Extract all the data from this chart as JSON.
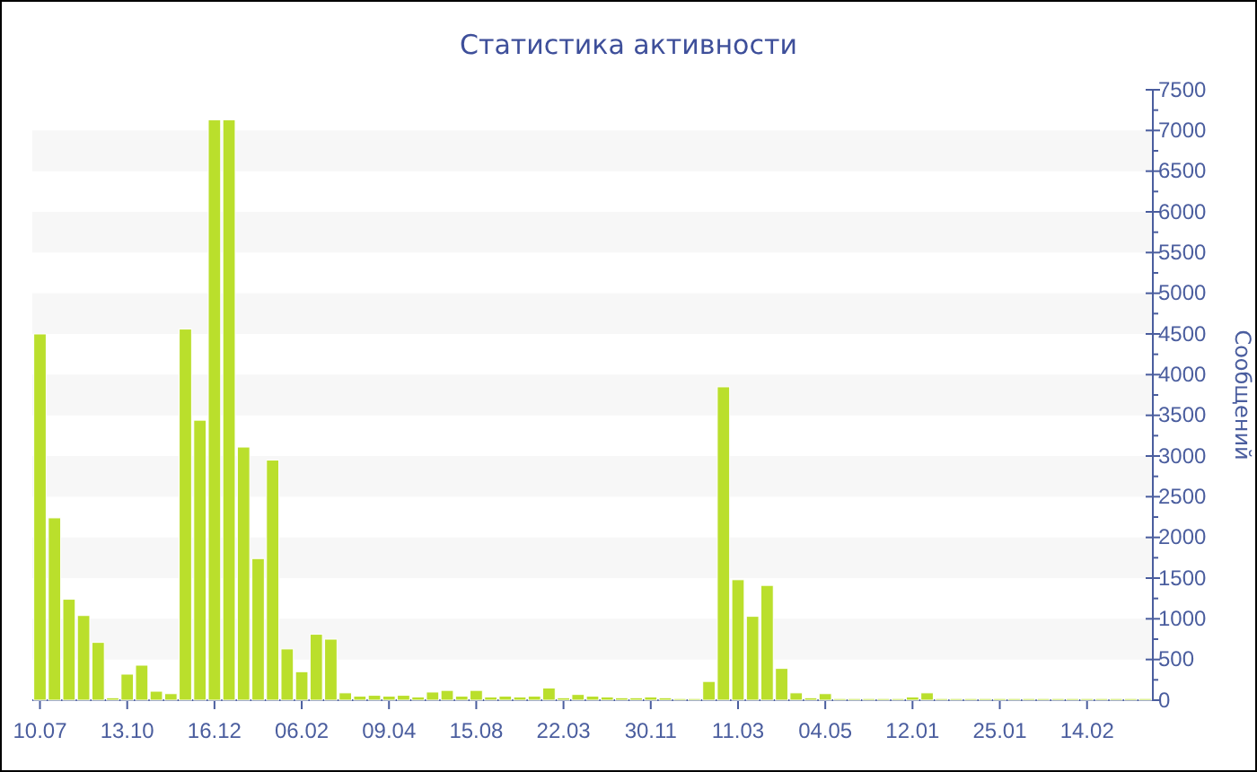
{
  "chart_data": {
    "type": "bar",
    "title": "Статистика активности",
    "ylabel": "Сообщений",
    "categories": [
      "10.07",
      null,
      null,
      null,
      null,
      null,
      "13.10",
      null,
      null,
      null,
      null,
      null,
      "16.12",
      null,
      null,
      null,
      null,
      null,
      "06.02",
      null,
      null,
      null,
      null,
      null,
      "09.04",
      null,
      null,
      null,
      null,
      null,
      "15.08",
      null,
      null,
      null,
      null,
      null,
      "22.03",
      null,
      null,
      null,
      null,
      null,
      "30.11",
      null,
      null,
      null,
      null,
      null,
      "11.03",
      null,
      null,
      null,
      null,
      null,
      "04.05",
      null,
      null,
      null,
      null,
      null,
      "12.01",
      null,
      null,
      null,
      null,
      null,
      "25.01",
      null,
      null,
      null,
      null,
      null,
      "14.02",
      null,
      null,
      null,
      null
    ],
    "values": [
      4500,
      2240,
      1240,
      1040,
      710,
      30,
      320,
      430,
      110,
      80,
      4560,
      3440,
      7130,
      7130,
      3110,
      1740,
      2950,
      630,
      350,
      810,
      750,
      90,
      50,
      60,
      50,
      60,
      40,
      100,
      120,
      50,
      120,
      40,
      50,
      40,
      50,
      150,
      30,
      70,
      50,
      40,
      30,
      30,
      40,
      30,
      20,
      20,
      230,
      3850,
      1480,
      1030,
      1410,
      390,
      90,
      30,
      80,
      20,
      20,
      20,
      20,
      20,
      40,
      90,
      20,
      20,
      20,
      20,
      20,
      20,
      20,
      20,
      20,
      20,
      20,
      20,
      20,
      20,
      20
    ],
    "color": "#badf2c",
    "ylim": [
      0,
      7500
    ],
    "yticks": [
      0,
      {
        "value": 250,
        "label": null
      },
      500,
      {
        "value": 750,
        "label": null
      },
      1000,
      {
        "value": 1250,
        "label": null
      },
      1500,
      {
        "value": 1750,
        "label": null
      },
      2000,
      {
        "value": 2250,
        "label": null
      },
      2500,
      {
        "value": 2750,
        "label": null
      },
      3000,
      {
        "value": 3250,
        "label": null
      },
      3500,
      {
        "value": 3750,
        "label": null
      },
      4000,
      {
        "value": 4250,
        "label": null
      },
      4500,
      {
        "value": 4750,
        "label": null
      },
      5000,
      {
        "value": 5250,
        "label": null
      },
      5500,
      {
        "value": 5750,
        "label": null
      },
      6000,
      {
        "value": 6250,
        "label": null
      },
      6500,
      {
        "value": 6750,
        "label": null
      },
      7000,
      {
        "value": 7250,
        "label": null
      },
      7500
    ],
    "bands": [
      {
        "axis": "y",
        "from": 500,
        "to": 1000,
        "color": "#f7f7f7"
      },
      {
        "axis": "y",
        "from": 1500,
        "to": 2000,
        "color": "#f7f7f7"
      },
      {
        "axis": "y",
        "from": 2500,
        "to": 3000,
        "color": "#f7f7f7"
      },
      {
        "axis": "y",
        "from": 3500,
        "to": 4000,
        "color": "#f7f7f7"
      },
      {
        "axis": "y",
        "from": 4500,
        "to": 5000,
        "color": "#f7f7f7"
      },
      {
        "axis": "y",
        "from": 5500,
        "to": 6000,
        "color": "#f7f7f7"
      },
      {
        "axis": "y",
        "from": 6500,
        "to": 7000,
        "color": "#f7f7f7"
      }
    ],
    "grid": false
  }
}
